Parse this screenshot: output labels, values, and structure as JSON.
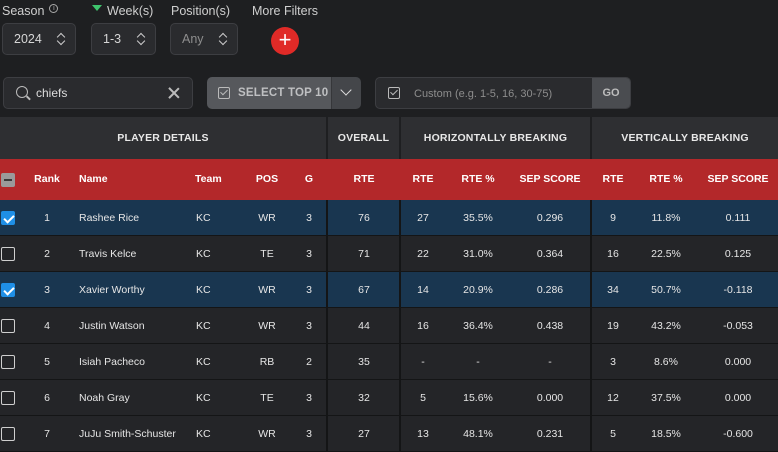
{
  "filters": {
    "season": {
      "label": "Season",
      "value": "2024"
    },
    "weeks": {
      "label": "Week(s)",
      "value": "1-3"
    },
    "position": {
      "label": "Position(s)",
      "value": "Any"
    },
    "more_filters": {
      "label": "More Filters",
      "button": "+"
    }
  },
  "search": {
    "value": "chiefs"
  },
  "select_top": {
    "label": "SELECT TOP 10"
  },
  "custom": {
    "placeholder": "Custom (e.g. 1-5, 16, 30-75)",
    "go_label": "GO"
  },
  "table": {
    "groups": {
      "player_details": "PLAYER DETAILS",
      "overall": "OVERALL",
      "horizontal": "HORIZONTALLY BREAKING",
      "vertical": "VERTICALLY BREAKING"
    },
    "headers": {
      "rank": "Rank",
      "name": "Name",
      "team": "Team",
      "pos": "POS",
      "g": "G",
      "overall_rte": "RTE",
      "h_rte": "RTE",
      "h_rte_pct": "RTE %",
      "h_sep": "SEP SCORE",
      "v_rte": "RTE",
      "v_rte_pct": "RTE %",
      "v_sep": "SEP SCORE"
    },
    "rows": [
      {
        "selected": true,
        "rank": "1",
        "name": "Rashee Rice",
        "team": "KC",
        "pos": "WR",
        "g": "3",
        "overall_rte": "76",
        "h_rte": "27",
        "h_rte_pct": "35.5%",
        "h_sep": "0.296",
        "v_rte": "9",
        "v_rte_pct": "11.8%",
        "v_sep": "0.111"
      },
      {
        "selected": false,
        "rank": "2",
        "name": "Travis Kelce",
        "team": "KC",
        "pos": "TE",
        "g": "3",
        "overall_rte": "71",
        "h_rte": "22",
        "h_rte_pct": "31.0%",
        "h_sep": "0.364",
        "v_rte": "16",
        "v_rte_pct": "22.5%",
        "v_sep": "0.125"
      },
      {
        "selected": true,
        "rank": "3",
        "name": "Xavier Worthy",
        "team": "KC",
        "pos": "WR",
        "g": "3",
        "overall_rte": "67",
        "h_rte": "14",
        "h_rte_pct": "20.9%",
        "h_sep": "0.286",
        "v_rte": "34",
        "v_rte_pct": "50.7%",
        "v_sep": "-0.118"
      },
      {
        "selected": false,
        "rank": "4",
        "name": "Justin Watson",
        "team": "KC",
        "pos": "WR",
        "g": "3",
        "overall_rte": "44",
        "h_rte": "16",
        "h_rte_pct": "36.4%",
        "h_sep": "0.438",
        "v_rte": "19",
        "v_rte_pct": "43.2%",
        "v_sep": "-0.053"
      },
      {
        "selected": false,
        "rank": "5",
        "name": "Isiah Pacheco",
        "team": "KC",
        "pos": "RB",
        "g": "2",
        "overall_rte": "35",
        "h_rte": "-",
        "h_rte_pct": "-",
        "h_sep": "-",
        "v_rte": "3",
        "v_rte_pct": "8.6%",
        "v_sep": "0.000"
      },
      {
        "selected": false,
        "rank": "6",
        "name": "Noah Gray",
        "team": "KC",
        "pos": "TE",
        "g": "3",
        "overall_rte": "32",
        "h_rte": "5",
        "h_rte_pct": "15.6%",
        "h_sep": "0.000",
        "v_rte": "12",
        "v_rte_pct": "37.5%",
        "v_sep": "0.000"
      },
      {
        "selected": false,
        "rank": "7",
        "name": "JuJu Smith-Schuster",
        "team": "KC",
        "pos": "WR",
        "g": "3",
        "overall_rte": "27",
        "h_rte": "13",
        "h_rte_pct": "48.1%",
        "h_sep": "0.231",
        "v_rte": "5",
        "v_rte_pct": "18.5%",
        "v_sep": "-0.600"
      }
    ]
  }
}
